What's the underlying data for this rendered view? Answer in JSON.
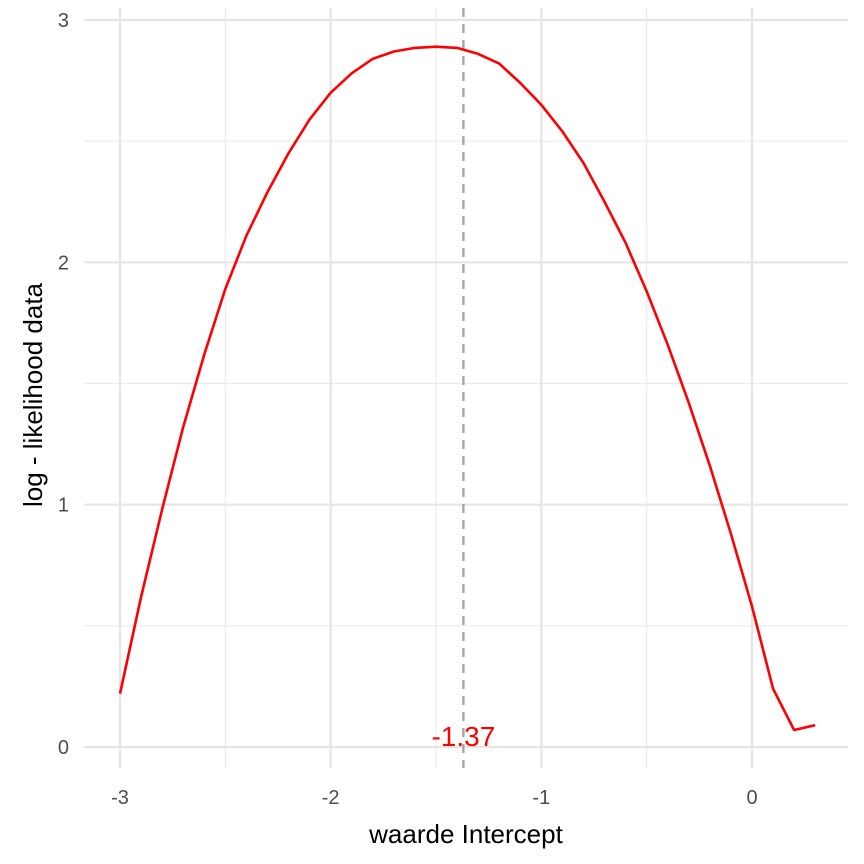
{
  "chart_data": {
    "type": "line",
    "xlabel": "waarde Intercept",
    "ylabel": "log - likelihood data",
    "xlim": [
      -3.1,
      0.45
    ],
    "ylim": [
      -0.1,
      3.0
    ],
    "x_ticks": [
      -3,
      -2,
      -1,
      0
    ],
    "y_ticks": [
      0,
      1,
      2,
      3
    ],
    "x_tick_labels": [
      "-3",
      "-2",
      "-1",
      "0"
    ],
    "y_tick_labels": [
      "0",
      "1",
      "2",
      "3"
    ],
    "grid": true,
    "series": [
      {
        "color": "#ff0000",
        "x": [
          -3.0,
          -2.9,
          -2.8,
          -2.7,
          -2.6,
          -2.5,
          -2.4,
          -2.3,
          -2.2,
          -2.1,
          -2.0,
          -1.9,
          -1.8,
          -1.7,
          -1.6,
          -1.5,
          -1.4,
          -1.3,
          -1.2,
          -1.1,
          -1.0,
          -0.9,
          -0.8,
          -0.7,
          -0.6,
          -0.5,
          -0.4,
          -0.3,
          -0.2,
          -0.1,
          0.0,
          0.1,
          0.2,
          0.3
        ],
        "y": [
          0.22,
          0.62,
          0.98,
          1.32,
          1.62,
          1.89,
          2.11,
          2.29,
          2.45,
          2.59,
          2.7,
          2.78,
          2.84,
          2.87,
          2.885,
          2.89,
          2.885,
          2.86,
          2.82,
          2.74,
          2.65,
          2.54,
          2.41,
          2.25,
          2.08,
          1.88,
          1.66,
          1.42,
          1.16,
          0.88,
          0.58,
          0.24,
          0.07,
          0.09
        ]
      }
    ],
    "vline": {
      "x": -1.37,
      "color": "#a6a6a6",
      "style": "dashed"
    },
    "annotation": {
      "text": "-1.37",
      "x": -1.37,
      "y": 0.02,
      "color": "#ff0000"
    }
  }
}
